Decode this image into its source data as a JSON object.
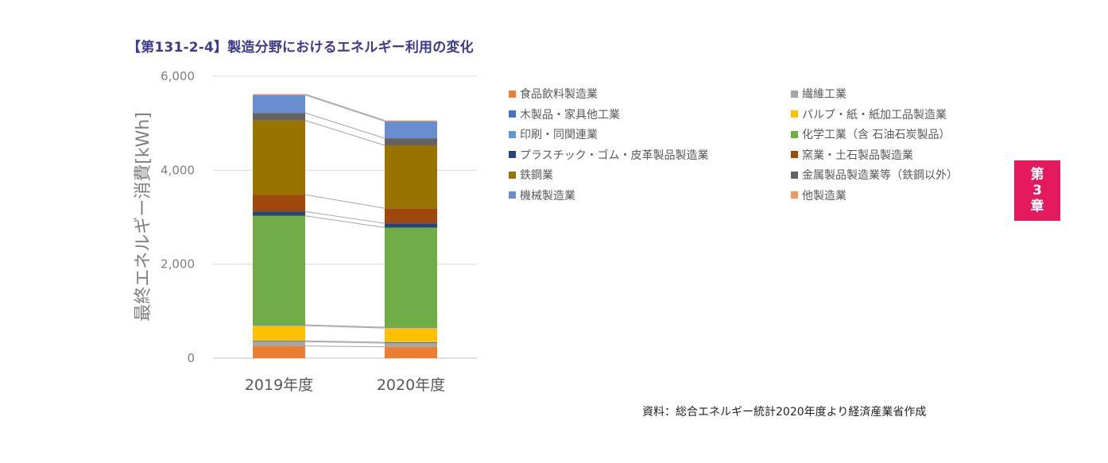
{
  "figure": {
    "title": "【第131-2-4】製造分野におけるエネルギー利用の変化",
    "source": "資料：総合エネルギー統計2020年度より経済産業省作成"
  },
  "chapter_tab": {
    "line1": "第",
    "line2": "3",
    "line3": "章",
    "color": "#e5195e"
  },
  "chart_data": {
    "type": "bar",
    "stacked": true,
    "title": "",
    "ylabel": "最終エネルギー消費[kWh]",
    "xlabel": "",
    "ylim": [
      0,
      6000
    ],
    "yticks": [
      0,
      2000,
      4000,
      6000
    ],
    "ytick_labels": [
      "0",
      "2,000",
      "4,000",
      "6,000"
    ],
    "categories": [
      "2019年度",
      "2020年度"
    ],
    "grid": true,
    "connector_lines": true,
    "legend_position": "right",
    "series": [
      {
        "name": "食品飲料製造業",
        "color": "#ed7d31",
        "values": [
          260,
          240
        ]
      },
      {
        "name": "繊維工業",
        "color": "#a5a5a5",
        "values": [
          90,
          80
        ]
      },
      {
        "name": "木製品・家具他工業",
        "color": "#4472c4",
        "values": [
          20,
          20
        ]
      },
      {
        "name": "パルプ・紙・紙加工品製造業",
        "color": "#ffc000",
        "values": [
          320,
          300
        ]
      },
      {
        "name": "印刷・同関連業",
        "color": "#5b9bd5",
        "values": [
          20,
          20
        ]
      },
      {
        "name": "化学工業（含 石油石炭製品）",
        "color": "#70ad47",
        "values": [
          2320,
          2120
        ]
      },
      {
        "name": "プラスチック・ゴム・皮革製品製造業",
        "color": "#264478",
        "values": [
          90,
          90
        ]
      },
      {
        "name": "窯業・土石製品製造業",
        "color": "#9e480e",
        "values": [
          360,
          320
        ]
      },
      {
        "name": "鉄鋼業",
        "color": "#997300",
        "values": [
          1580,
          1340
        ]
      },
      {
        "name": "金属製品製造業等（鉄鋼以外）",
        "color": "#636363",
        "values": [
          160,
          150
        ]
      },
      {
        "name": "機械製造業",
        "color": "#698ed0",
        "values": [
          380,
          360
        ]
      },
      {
        "name": "他製造業",
        "color": "#f1975a",
        "values": [
          20,
          20
        ]
      }
    ]
  }
}
